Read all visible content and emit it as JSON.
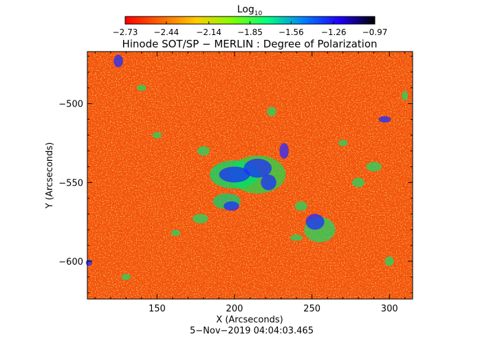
{
  "chart_data": {
    "type": "heatmap",
    "title": "Hinode SOT/SP − MERLIN : Degree of Polarization",
    "xlabel": "X (Arcseconds)",
    "ylabel": "Y (Arcseconds)",
    "timestamp": "5−Nov−2019 04:04:03.465",
    "xlim": [
      105,
      315
    ],
    "ylim": [
      -624,
      -467
    ],
    "x_ticks": [
      150,
      200,
      250,
      300
    ],
    "y_ticks": [
      -500,
      -550,
      -600
    ],
    "x_tick_labels": [
      "150",
      "200",
      "250",
      "300"
    ],
    "y_tick_labels": [
      "−500",
      "−550",
      "−600"
    ],
    "colorbar": {
      "title_base": "Log",
      "title_sub": "10",
      "range": [
        -2.73,
        -0.97
      ],
      "ticks": [
        -2.73,
        -2.44,
        -2.14,
        -1.85,
        -1.56,
        -1.26,
        -0.97
      ],
      "tick_labels": [
        "−2.73",
        "−2.44",
        "−2.14",
        "−1.85",
        "−1.56",
        "−1.26",
        "−0.97"
      ],
      "colors": [
        "#ff0000",
        "#ff6600",
        "#ffcc00",
        "#80ff00",
        "#00ff80",
        "#0080ff",
        "#2000ff",
        "#000000"
      ]
    },
    "grid": false
  }
}
